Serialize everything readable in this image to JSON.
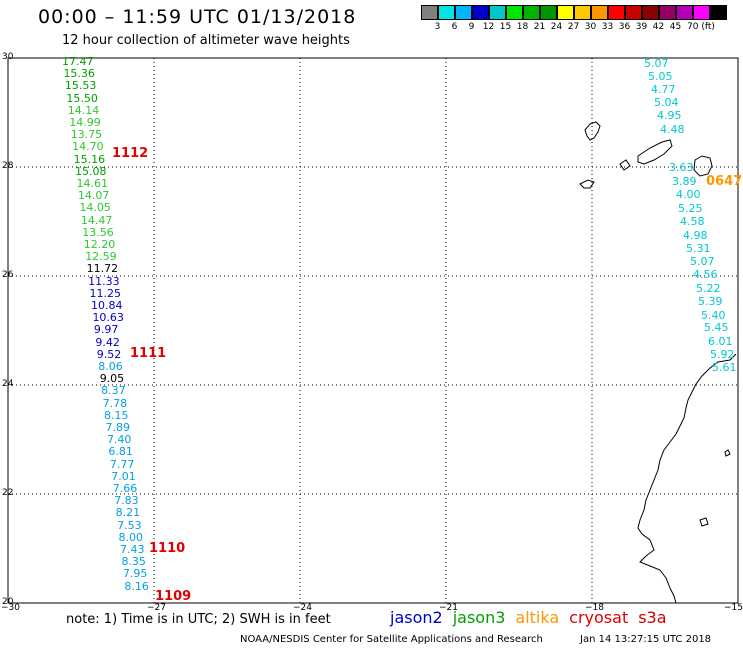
{
  "header": {
    "title": "00:00 – 11:59 UTC 01/13/2018",
    "subtitle": "12 hour collection of altimeter wave heights"
  },
  "colorbar": {
    "colors": [
      "#808080",
      "#00e6e6",
      "#00b4ff",
      "#0000cd",
      "#00c8c8",
      "#00e600",
      "#00b400",
      "#009600",
      "#ffff00",
      "#ffc800",
      "#ff9600",
      "#ff0000",
      "#c80000",
      "#8b0000",
      "#960064",
      "#b400b4",
      "#ff00ff",
      "#000000"
    ],
    "labels": [
      "3",
      "6",
      "9",
      "12",
      "15",
      "18",
      "21",
      "24",
      "27",
      "30",
      "33",
      "36",
      "39",
      "42",
      "45",
      "70 (ft)"
    ]
  },
  "axes": {
    "y_ticks": [
      "30",
      "28",
      "26",
      "24",
      "22",
      "20"
    ],
    "x_ticks": [
      "−30",
      "−27",
      "−24",
      "−21",
      "−18",
      "−15"
    ]
  },
  "tracks": {
    "west_values": [
      "17.47",
      "15.36",
      "15.53",
      "15.50",
      "14.14",
      "14.99",
      "13.75",
      "14.70",
      "15.16",
      "15.08",
      "14.61",
      "14.07",
      "14.05",
      "14.47",
      "13.56",
      "12.20",
      "12.59",
      "11.72",
      "11.33",
      "11.25",
      "10.84",
      "10.63",
      "9.97",
      "9.42",
      "9.52",
      "8.06",
      "9.05",
      "8.37",
      "7.78",
      "8.15",
      "7.89",
      "7.40",
      "6.81",
      "7.77",
      "7.01",
      "7.66",
      "7.83",
      "8.21",
      "7.53",
      "8.00",
      "7.43",
      "8.35",
      "7.95",
      "8.16"
    ],
    "west_colors": [
      "#00a000",
      "#00a000",
      "#00a000",
      "#00a000",
      "#2ec82e",
      "#2ec82e",
      "#2ec82e",
      "#2ec82e",
      "#00a000",
      "#00a000",
      "#2ec82e",
      "#2ec82e",
      "#2ec82e",
      "#2ec82e",
      "#2ec82e",
      "#2ec82e",
      "#2ec82e",
      "#000000",
      "#0000cd",
      "#0000cd",
      "#0000cd",
      "#0000cd",
      "#0000cd",
      "#0000cd",
      "#0000cd",
      "#00a0e6",
      "#000000",
      "#00a0e6",
      "#00a0e6",
      "#00a0e6",
      "#00a0e6",
      "#00a0e6",
      "#00a0e6",
      "#00a0e6",
      "#00a0e6",
      "#00a0e6",
      "#00a0e6",
      "#00a0e6",
      "#00a0e6",
      "#00a0e6",
      "#00a0e6",
      "#00a0e6",
      "#00a0e6",
      "#00a0e6"
    ],
    "east_values": [
      "5.07",
      "5.05",
      "4.77",
      "5.04",
      "4.95",
      "4.48",
      "3.63",
      "3.89",
      "4.00",
      "5.25",
      "4.58",
      "4.98",
      "5.31",
      "5.07",
      "4.56",
      "5.22",
      "5.39",
      "5.40",
      "5.45",
      "6.01",
      "5.92",
      "5.61"
    ],
    "east_color": "#00c8d2",
    "orbits": [
      {
        "label": "1112",
        "color": "#e00000"
      },
      {
        "label": "1111",
        "color": "#e00000"
      },
      {
        "label": "1110",
        "color": "#e00000"
      },
      {
        "label": "1109",
        "color": "#e00000"
      },
      {
        "label": "0647",
        "color": "#ff9600"
      }
    ]
  },
  "footer": {
    "note": "note: 1) Time is in UTC; 2) SWH is in feet",
    "legend": [
      {
        "name": "jason2",
        "color": "#0000cd"
      },
      {
        "name": "jason3",
        "color": "#00a000"
      },
      {
        "name": "altika",
        "color": "#ff9600"
      },
      {
        "name": "cryosat",
        "color": "#e00000"
      },
      {
        "name": "s3a",
        "color": "#c80000"
      }
    ],
    "credit": "NOAA/NESDIS Center for Satellite Applications and Research",
    "timestamp": "Jan 14 13:27:15 UTC 2018"
  }
}
